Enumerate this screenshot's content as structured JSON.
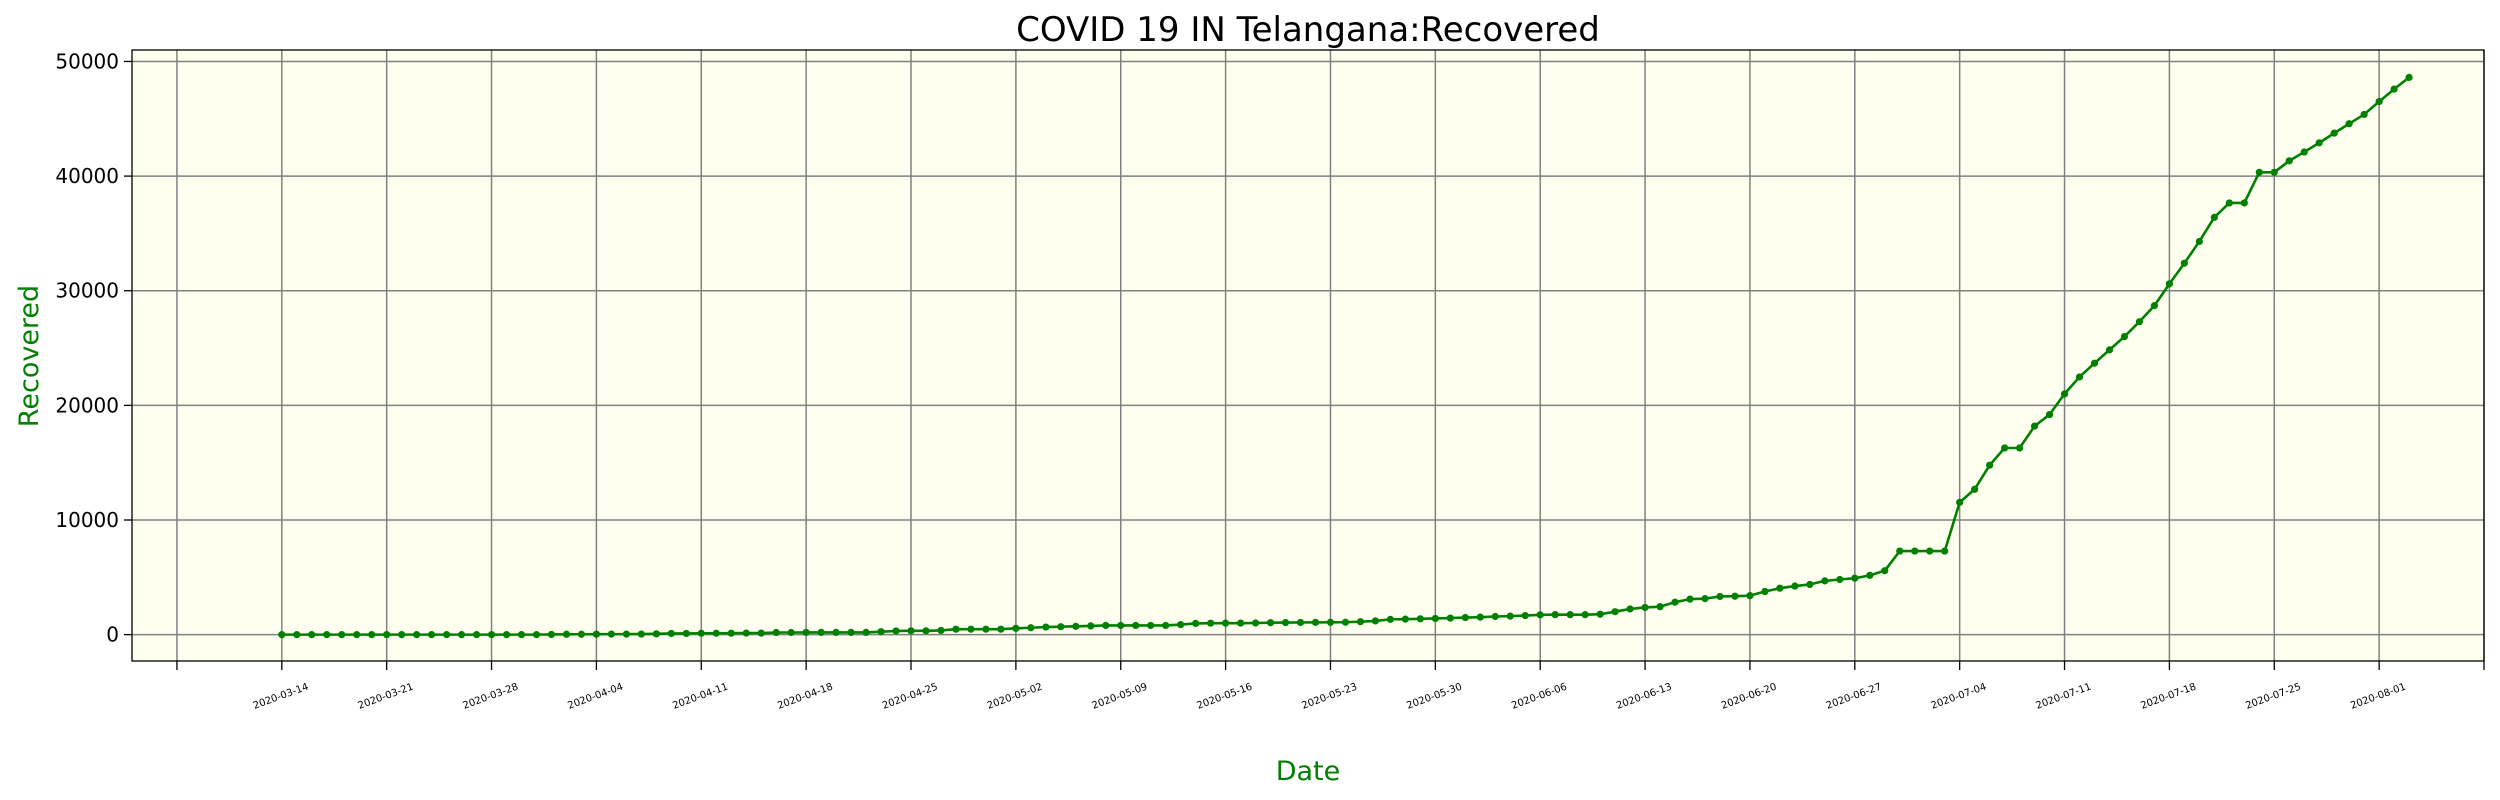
{
  "chart_data": {
    "type": "line",
    "title": "COVID 19 IN Telangana:Recovered",
    "xlabel": "Date",
    "ylabel": "Recovered",
    "label_color": "#008000",
    "line_color": "#008000",
    "plot_background": "#fffff0",
    "grid_color": "#808080",
    "grid": true,
    "ylim": [
      -2300,
      51000
    ],
    "yticks": [
      0,
      10000,
      20000,
      30000,
      40000,
      50000
    ],
    "xlim": [
      "2020-03-04",
      "2020-08-08"
    ],
    "xticks": [
      "2020-03-14",
      "2020-03-21",
      "2020-03-28",
      "2020-04-04",
      "2020-04-11",
      "2020-04-18",
      "2020-04-25",
      "2020-05-02",
      "2020-05-09",
      "2020-05-16",
      "2020-05-23",
      "2020-05-30",
      "2020-06-06",
      "2020-06-13",
      "2020-06-20",
      "2020-06-27",
      "2020-07-04",
      "2020-07-11",
      "2020-07-18",
      "2020-07-25",
      "2020-08-01"
    ],
    "series": [
      {
        "values": [
          [
            "2020-03-14",
            0
          ],
          [
            "2020-03-15",
            0
          ],
          [
            "2020-03-16",
            0
          ],
          [
            "2020-03-17",
            0
          ],
          [
            "2020-03-18",
            0
          ],
          [
            "2020-03-19",
            0
          ],
          [
            "2020-03-20",
            0
          ],
          [
            "2020-03-21",
            1
          ],
          [
            "2020-03-22",
            1
          ],
          [
            "2020-03-23",
            1
          ],
          [
            "2020-03-24",
            1
          ],
          [
            "2020-03-25",
            1
          ],
          [
            "2020-03-26",
            1
          ],
          [
            "2020-03-27",
            1
          ],
          [
            "2020-03-28",
            1
          ],
          [
            "2020-03-29",
            1
          ],
          [
            "2020-03-30",
            1
          ],
          [
            "2020-03-31",
            1
          ],
          [
            "2020-04-01",
            14
          ],
          [
            "2020-04-02",
            32
          ],
          [
            "2020-04-03",
            33
          ],
          [
            "2020-04-04",
            35
          ],
          [
            "2020-04-05",
            45
          ],
          [
            "2020-04-06",
            45
          ],
          [
            "2020-04-07",
            49
          ],
          [
            "2020-04-08",
            68
          ],
          [
            "2020-04-09",
            101
          ],
          [
            "2020-04-10",
            101
          ],
          [
            "2020-04-11",
            120
          ],
          [
            "2020-04-12",
            121
          ],
          [
            "2020-04-13",
            128
          ],
          [
            "2020-04-14",
            137
          ],
          [
            "2020-04-15",
            137
          ],
          [
            "2020-04-16",
            186
          ],
          [
            "2020-04-17",
            186
          ],
          [
            "2020-04-18",
            190
          ],
          [
            "2020-04-19",
            194
          ],
          [
            "2020-04-20",
            194
          ],
          [
            "2020-04-21",
            194
          ],
          [
            "2020-04-22",
            194
          ],
          [
            "2020-04-23",
            253
          ],
          [
            "2020-04-24",
            321
          ],
          [
            "2020-04-25",
            332
          ],
          [
            "2020-04-26",
            332
          ],
          [
            "2020-04-27",
            367
          ],
          [
            "2020-04-28",
            474
          ],
          [
            "2020-04-29",
            474
          ],
          [
            "2020-04-30",
            474
          ],
          [
            "2020-05-01",
            474
          ],
          [
            "2020-05-02",
            549
          ],
          [
            "2020-05-03",
            600
          ],
          [
            "2020-05-04",
            660
          ],
          [
            "2020-05-05",
            693
          ],
          [
            "2020-05-06",
            722
          ],
          [
            "2020-05-07",
            761
          ],
          [
            "2020-05-08",
            800
          ],
          [
            "2020-05-09",
            800
          ],
          [
            "2020-05-10",
            800
          ],
          [
            "2020-05-11",
            800
          ],
          [
            "2020-05-12",
            800
          ],
          [
            "2020-05-13",
            880
          ],
          [
            "2020-05-14",
            980
          ],
          [
            "2020-05-15",
            1000
          ],
          [
            "2020-05-16",
            1002
          ],
          [
            "2020-05-17",
            1003
          ],
          [
            "2020-05-18",
            1014
          ],
          [
            "2020-05-19",
            1039
          ],
          [
            "2020-05-20",
            1053
          ],
          [
            "2020-05-21",
            1063
          ],
          [
            "2020-05-22",
            1069
          ],
          [
            "2020-05-23",
            1079
          ],
          [
            "2020-05-24",
            1081
          ],
          [
            "2020-05-25",
            1128
          ],
          [
            "2020-05-26",
            1197
          ],
          [
            "2020-05-27",
            1331
          ],
          [
            "2020-05-28",
            1352
          ],
          [
            "2020-05-29",
            1380
          ],
          [
            "2020-05-30",
            1409
          ],
          [
            "2020-05-31",
            1443
          ],
          [
            "2020-06-01",
            1492
          ],
          [
            "2020-06-02",
            1526
          ],
          [
            "2020-06-03",
            1581
          ],
          [
            "2020-06-04",
            1615
          ],
          [
            "2020-06-05",
            1666
          ],
          [
            "2020-06-06",
            1726
          ],
          [
            "2020-06-07",
            1742
          ],
          [
            "2020-06-08",
            1742
          ],
          [
            "2020-06-09",
            1742
          ],
          [
            "2020-06-10",
            1780
          ],
          [
            "2020-06-11",
            2000
          ],
          [
            "2020-06-12",
            2240
          ],
          [
            "2020-06-13",
            2370
          ],
          [
            "2020-06-14",
            2440
          ],
          [
            "2020-06-15",
            2830
          ],
          [
            "2020-06-16",
            3100
          ],
          [
            "2020-06-17",
            3140
          ],
          [
            "2020-06-18",
            3330
          ],
          [
            "2020-06-19",
            3350
          ],
          [
            "2020-06-20",
            3400
          ],
          [
            "2020-06-21",
            3760
          ],
          [
            "2020-06-22",
            4050
          ],
          [
            "2020-06-23",
            4240
          ],
          [
            "2020-06-24",
            4380
          ],
          [
            "2020-06-25",
            4690
          ],
          [
            "2020-06-26",
            4810
          ],
          [
            "2020-06-27",
            4920
          ],
          [
            "2020-06-28",
            5170
          ],
          [
            "2020-06-29",
            5580
          ],
          [
            "2020-06-30",
            7290
          ],
          [
            "2020-07-01",
            7290
          ],
          [
            "2020-07-02",
            7290
          ],
          [
            "2020-07-03",
            7290
          ],
          [
            "2020-07-04",
            11540
          ],
          [
            "2020-07-05",
            12680
          ],
          [
            "2020-07-06",
            14780
          ],
          [
            "2020-07-07",
            16280
          ],
          [
            "2020-07-08",
            16280
          ],
          [
            "2020-07-09",
            18190
          ],
          [
            "2020-07-10",
            19200
          ],
          [
            "2020-07-11",
            21000
          ],
          [
            "2020-07-12",
            22480
          ],
          [
            "2020-07-13",
            23680
          ],
          [
            "2020-07-14",
            24840
          ],
          [
            "2020-07-15",
            26000
          ],
          [
            "2020-07-16",
            27300
          ],
          [
            "2020-07-17",
            28700
          ],
          [
            "2020-07-18",
            30600
          ],
          [
            "2020-07-19",
            32400
          ],
          [
            "2020-07-20",
            34300
          ],
          [
            "2020-07-21",
            36400
          ],
          [
            "2020-07-22",
            37660
          ],
          [
            "2020-07-23",
            37660
          ],
          [
            "2020-07-24",
            40330
          ],
          [
            "2020-07-25",
            40330
          ],
          [
            "2020-07-26",
            41330
          ],
          [
            "2020-07-27",
            42100
          ],
          [
            "2020-07-28",
            42900
          ],
          [
            "2020-07-29",
            43750
          ],
          [
            "2020-07-30",
            44570
          ],
          [
            "2020-07-31",
            45380
          ],
          [
            "2020-08-01",
            46500
          ],
          [
            "2020-08-02",
            47590
          ],
          [
            "2020-08-03",
            48609
          ]
        ]
      }
    ]
  }
}
